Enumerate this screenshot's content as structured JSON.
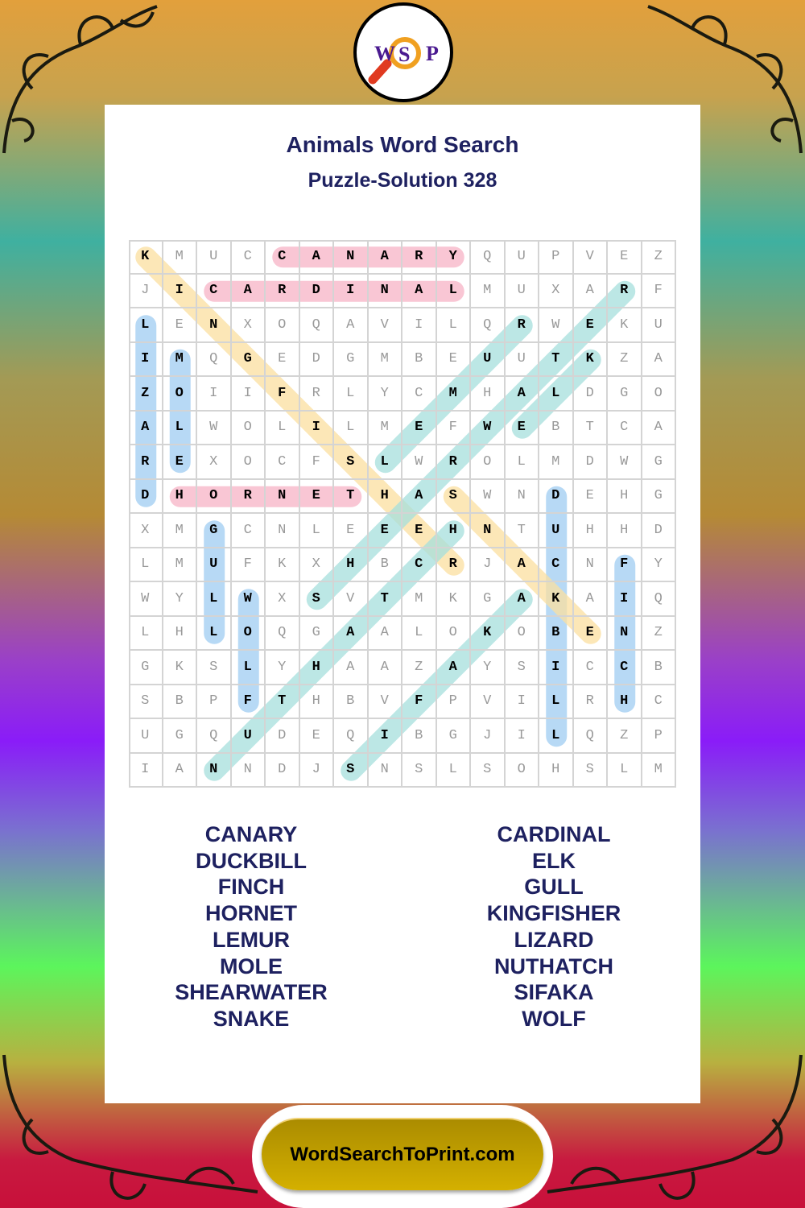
{
  "header": {
    "title": "Animals Word Search",
    "subtitle": "Puzzle-Solution 328"
  },
  "logo": {
    "letters": [
      "W",
      "S",
      "P"
    ],
    "icon": "magnifier-icon"
  },
  "grid": [
    "KMUCCANARYQUPVEZ",
    "JICARDINALMUXARF",
    "LENXOQAVILQRWEKU",
    "IMQGEDGMBEUUTKZA",
    "ZOIIFRLYCMHALDGO",
    "ALWOLILMEFWEBTCA",
    "REXOCFSLWROLMDWG",
    "DHORNETHASWNDEHG",
    "XMGCNLEEEHNTUHHD",
    "LMUFKXHBCRJACNFY",
    "WYLWXSVTMKGAKAIQ",
    "LHLOQGAALOKOBENZ",
    "GKSLYHAAZAYSICCB",
    "SBPFTHBVFPVILRHC",
    "UGQUDEQIBGJILQZP",
    "IANNDJSNSLSOHSLM"
  ],
  "colors": {
    "pink": "#f7b3c6",
    "blue": "#9fcdf2",
    "yellow": "#fbe0a0",
    "teal": "#a6e0dd",
    "title": "#1e2160"
  },
  "solutions": [
    {
      "word": "CANARY",
      "from": [
        0,
        4
      ],
      "to": [
        0,
        9
      ],
      "color": "pink"
    },
    {
      "word": "CARDINAL",
      "from": [
        1,
        2
      ],
      "to": [
        1,
        9
      ],
      "color": "pink"
    },
    {
      "word": "HORNET",
      "from": [
        7,
        1
      ],
      "to": [
        7,
        6
      ],
      "color": "pink"
    },
    {
      "word": "LIZARD",
      "from": [
        2,
        0
      ],
      "to": [
        7,
        0
      ],
      "color": "blue"
    },
    {
      "word": "MOLE",
      "from": [
        3,
        1
      ],
      "to": [
        6,
        1
      ],
      "color": "blue"
    },
    {
      "word": "GULL",
      "from": [
        8,
        2
      ],
      "to": [
        11,
        2
      ],
      "color": "blue"
    },
    {
      "word": "WOLF",
      "from": [
        10,
        3
      ],
      "to": [
        13,
        3
      ],
      "color": "blue"
    },
    {
      "word": "DUCKBILL",
      "from": [
        7,
        12
      ],
      "to": [
        14,
        12
      ],
      "color": "blue"
    },
    {
      "word": "FINCH",
      "from": [
        9,
        14
      ],
      "to": [
        13,
        14
      ],
      "color": "blue"
    },
    {
      "word": "KINGFISHER",
      "from": [
        0,
        0
      ],
      "to": [
        9,
        9
      ],
      "color": "yellow"
    },
    {
      "word": "SNAKE",
      "from": [
        7,
        9
      ],
      "to": [
        11,
        13
      ],
      "color": "yellow"
    },
    {
      "word": "LEMUR",
      "from": [
        6,
        7
      ],
      "to": [
        2,
        11
      ],
      "color": "teal"
    },
    {
      "word": "SHEARWATER",
      "from": [
        10,
        5
      ],
      "to": [
        1,
        14
      ],
      "color": "teal"
    },
    {
      "word": "ELK",
      "from": [
        5,
        11
      ],
      "to": [
        3,
        13
      ],
      "color": "teal"
    },
    {
      "word": "NUTHATCH",
      "from": [
        15,
        2
      ],
      "to": [
        8,
        9
      ],
      "color": "teal"
    },
    {
      "word": "SIFAKA",
      "from": [
        15,
        6
      ],
      "to": [
        10,
        11
      ],
      "color": "teal"
    }
  ],
  "word_list": {
    "left": [
      "CANARY",
      "DUCKBILL",
      "FINCH",
      "HORNET",
      "LEMUR",
      "MOLE",
      "SHEARWATER",
      "SNAKE"
    ],
    "right": [
      "CARDINAL",
      "ELK",
      "GULL",
      "KINGFISHER",
      "LIZARD",
      "NUTHATCH",
      "SIFAKA",
      "WOLF"
    ]
  },
  "footer": {
    "site": "WordSearchToPrint.com"
  }
}
